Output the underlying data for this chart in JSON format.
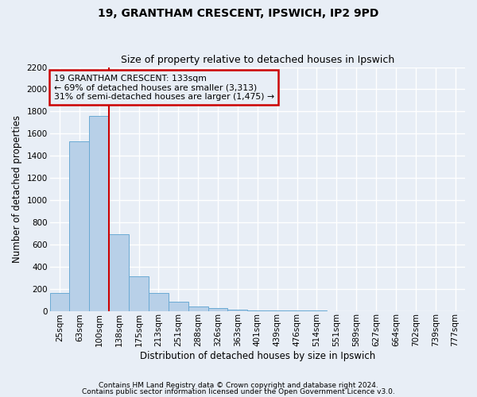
{
  "title1": "19, GRANTHAM CRESCENT, IPSWICH, IP2 9PD",
  "title2": "Size of property relative to detached houses in Ipswich",
  "xlabel": "Distribution of detached houses by size in Ipswich",
  "ylabel": "Number of detached properties",
  "categories": [
    "25sqm",
    "63sqm",
    "100sqm",
    "138sqm",
    "175sqm",
    "213sqm",
    "251sqm",
    "288sqm",
    "326sqm",
    "363sqm",
    "401sqm",
    "439sqm",
    "476sqm",
    "514sqm",
    "551sqm",
    "589sqm",
    "627sqm",
    "664sqm",
    "702sqm",
    "739sqm",
    "777sqm"
  ],
  "values": [
    160,
    1530,
    1760,
    690,
    310,
    160,
    80,
    42,
    22,
    12,
    5,
    2,
    2,
    1,
    0,
    0,
    0,
    0,
    0,
    0,
    0
  ],
  "bar_color": "#b8d0e8",
  "bar_edge_color": "#6aaad4",
  "property_line_color": "#cc0000",
  "annotation_line1": "19 GRANTHAM CRESCENT: 133sqm",
  "annotation_line2": "← 69% of detached houses are smaller (3,313)",
  "annotation_line3": "31% of semi-detached houses are larger (1,475) →",
  "annotation_box_color": "#cc0000",
  "ylim": [
    0,
    2200
  ],
  "yticks": [
    0,
    200,
    400,
    600,
    800,
    1000,
    1200,
    1400,
    1600,
    1800,
    2000,
    2200
  ],
  "footnote1": "Contains HM Land Registry data © Crown copyright and database right 2024.",
  "footnote2": "Contains public sector information licensed under the Open Government Licence v3.0.",
  "background_color": "#e8eef6",
  "plot_bg_color": "#e8eef6",
  "grid_color": "#ffffff",
  "title_fontsize": 10,
  "subtitle_fontsize": 9,
  "axis_label_fontsize": 8.5,
  "tick_fontsize": 7.5,
  "annotation_fontsize": 7.8,
  "footnote_fontsize": 6.5
}
